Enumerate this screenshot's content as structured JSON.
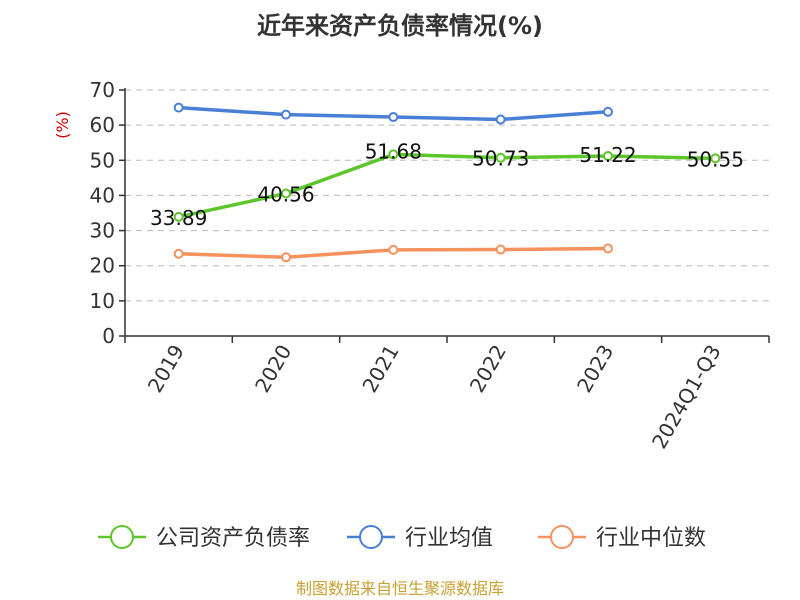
{
  "chart_data": {
    "type": "line",
    "title": "近年来资产负债率情况(%)",
    "ylabel": "(%)",
    "xlabel": "",
    "categories": [
      "2019",
      "2020",
      "2021",
      "2022",
      "2023",
      "2024Q1-Q3"
    ],
    "ylim": [
      0,
      70
    ],
    "yticks": [
      "0",
      "10",
      "20",
      "30",
      "40",
      "50",
      "60",
      "70"
    ],
    "grid": true,
    "legend_position": "bottom",
    "series": [
      {
        "name": "公司资产负债率",
        "color": "#5dc62c",
        "values": [
          33.89,
          40.56,
          51.68,
          50.73,
          51.22,
          50.55
        ],
        "labels": [
          "33.89",
          "40.56",
          "51.68",
          "50.73",
          "51.22",
          "50.55"
        ]
      },
      {
        "name": "行业均值",
        "color": "#4a7fd6",
        "values": [
          65.0,
          63.0,
          62.3,
          61.6,
          63.8,
          null
        ]
      },
      {
        "name": "行业中位数",
        "color": "#f5925e",
        "values": [
          23.4,
          22.4,
          24.5,
          24.6,
          24.9,
          null
        ]
      }
    ]
  },
  "source": "制图数据来自恒生聚源数据库"
}
